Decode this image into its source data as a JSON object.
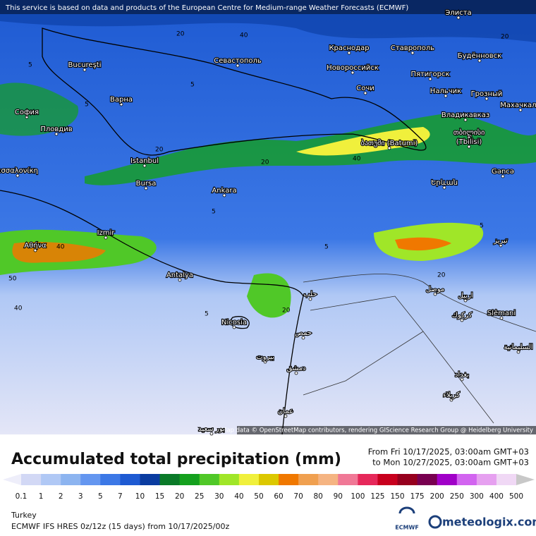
{
  "header": {
    "notice": "This service is based on data and products of the European Centre for Medium-range Weather Forecasts (ECMWF)"
  },
  "map": {
    "labels": [
      "Bucureşti",
      "Варна",
      "София",
      "Пловдив",
      "εσσαλονίκη",
      "Istanbul",
      "Bursa",
      "Ankara",
      "Izmir",
      "Αθήνα",
      "Antalya",
      "Nicosia",
      "Севастополь",
      "Краснодар",
      "Новороссийск",
      "Ставрополь",
      "Элиста",
      "Будённовск",
      "Пятигорск",
      "Нальчик",
      "Грозный",
      "Махачкала",
      "Сочи",
      "Владикавказ",
      "თბილისი",
      "(Tbilisi)",
      "ბათუმი (Batumi)",
      "Gəncə",
      "Երևան",
      "تبریز",
      "حلب",
      "حمص",
      "بيروت",
      "دمشق",
      "موصل",
      "اربيل",
      "Slêmani",
      "كركوك",
      "السليمانية",
      "بغداد",
      "كربلاء",
      "عمان",
      "بور سعيد"
    ],
    "contour_labels": [
      "5",
      "20",
      "20",
      "40",
      "5",
      "5",
      "20",
      "40",
      "5",
      "20",
      "40",
      "50",
      "5",
      "40",
      "20",
      "5",
      "20",
      "5"
    ],
    "attribution": "Map data © OpenStreetMap contributors, rendering GIScience Research Group @ Heidelberg University"
  },
  "legend": {
    "title": "Accumulated total precipitation (mm)",
    "from": "From Fri 10/17/2025, 03:00am GMT+03",
    "to": "to Mon 10/27/2025, 03:00am GMT+03",
    "ticks": [
      0.1,
      1,
      2,
      3,
      5,
      7,
      10,
      15,
      20,
      25,
      30,
      40,
      50,
      60,
      70,
      80,
      90,
      100,
      125,
      150,
      175,
      200,
      250,
      300,
      400,
      500
    ],
    "colors": [
      "#eeeefa",
      "#d2d8f5",
      "#b0c8f5",
      "#8cb4f0",
      "#6496f0",
      "#3c78e6",
      "#1e5ad2",
      "#0a3ca0",
      "#0a7a28",
      "#14a01e",
      "#50c828",
      "#a0e628",
      "#f0f03c",
      "#dcc800",
      "#f07800",
      "#f0a050",
      "#f5b482",
      "#f07896",
      "#e6285a",
      "#c8001e",
      "#96001e",
      "#780050",
      "#a000c8",
      "#d264f0",
      "#e6a0f0",
      "#f0d8f5",
      "#c8c8c8",
      "#a0a0a0"
    ]
  },
  "footer": {
    "region": "Turkey",
    "model": "ECMWF IFS HRES 0z/12z (15 days) from  10/17/2025/00z",
    "ecmwf": "ECMWF",
    "brand": "meteologix.com"
  }
}
